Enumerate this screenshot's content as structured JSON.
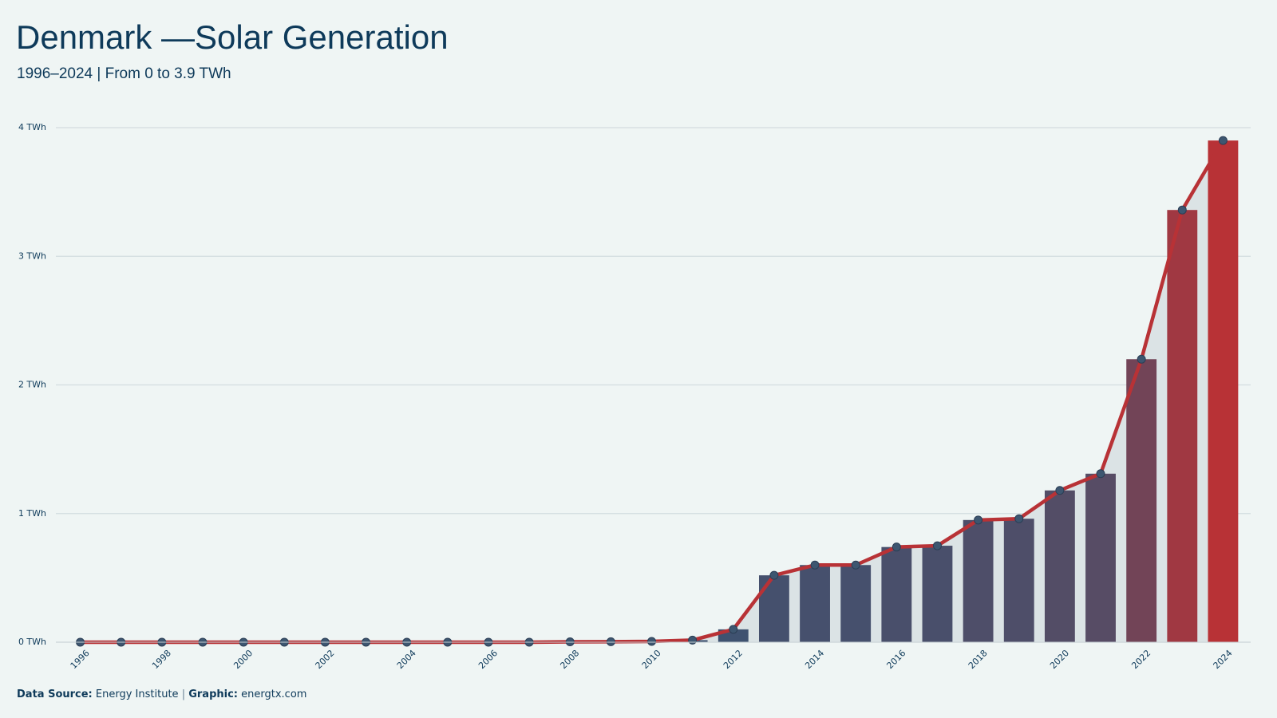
{
  "chart_data": {
    "type": "bar-line",
    "title": "Denmark —Solar Generation",
    "subtitle": "1996–2024 | From 0 to 3.9 TWh",
    "categories": [
      "1996",
      null,
      "1998",
      null,
      "2000",
      null,
      "2002",
      null,
      "2004",
      null,
      "2006",
      null,
      "2008",
      null,
      "2010",
      null,
      "2012",
      null,
      "2014",
      null,
      "2016",
      null,
      "2018",
      null,
      "2020",
      null,
      "2022",
      null,
      "2024"
    ],
    "values": [
      0,
      0,
      0,
      0,
      0,
      0,
      0,
      0,
      0,
      0,
      0,
      0,
      0.003,
      0.004,
      0.006,
      0.016,
      0.1,
      0.52,
      0.6,
      0.6,
      0.74,
      0.75,
      0.95,
      0.96,
      1.18,
      1.31,
      2.2,
      3.36,
      3.9
    ],
    "color_low": "#3f5270",
    "color_high": "#b83236",
    "line_color": "#b83236",
    "marker_color": "#3d5670",
    "area_color": "#dbe3e5",
    "ylim": [
      0,
      4
    ],
    "yticks": [
      {
        "value": 0,
        "label": "0 TWh"
      },
      {
        "value": 1,
        "label": "1 TWh"
      },
      {
        "value": 2,
        "label": "2 TWh"
      },
      {
        "value": 3,
        "label": "3 TWh"
      },
      {
        "value": 4,
        "label": "4 TWh"
      }
    ],
    "grid": true,
    "source_label": "Data Source:",
    "source": "Energy Institute",
    "separator": "|",
    "graphic_label": "Graphic:",
    "graphic": "energtx.com"
  }
}
